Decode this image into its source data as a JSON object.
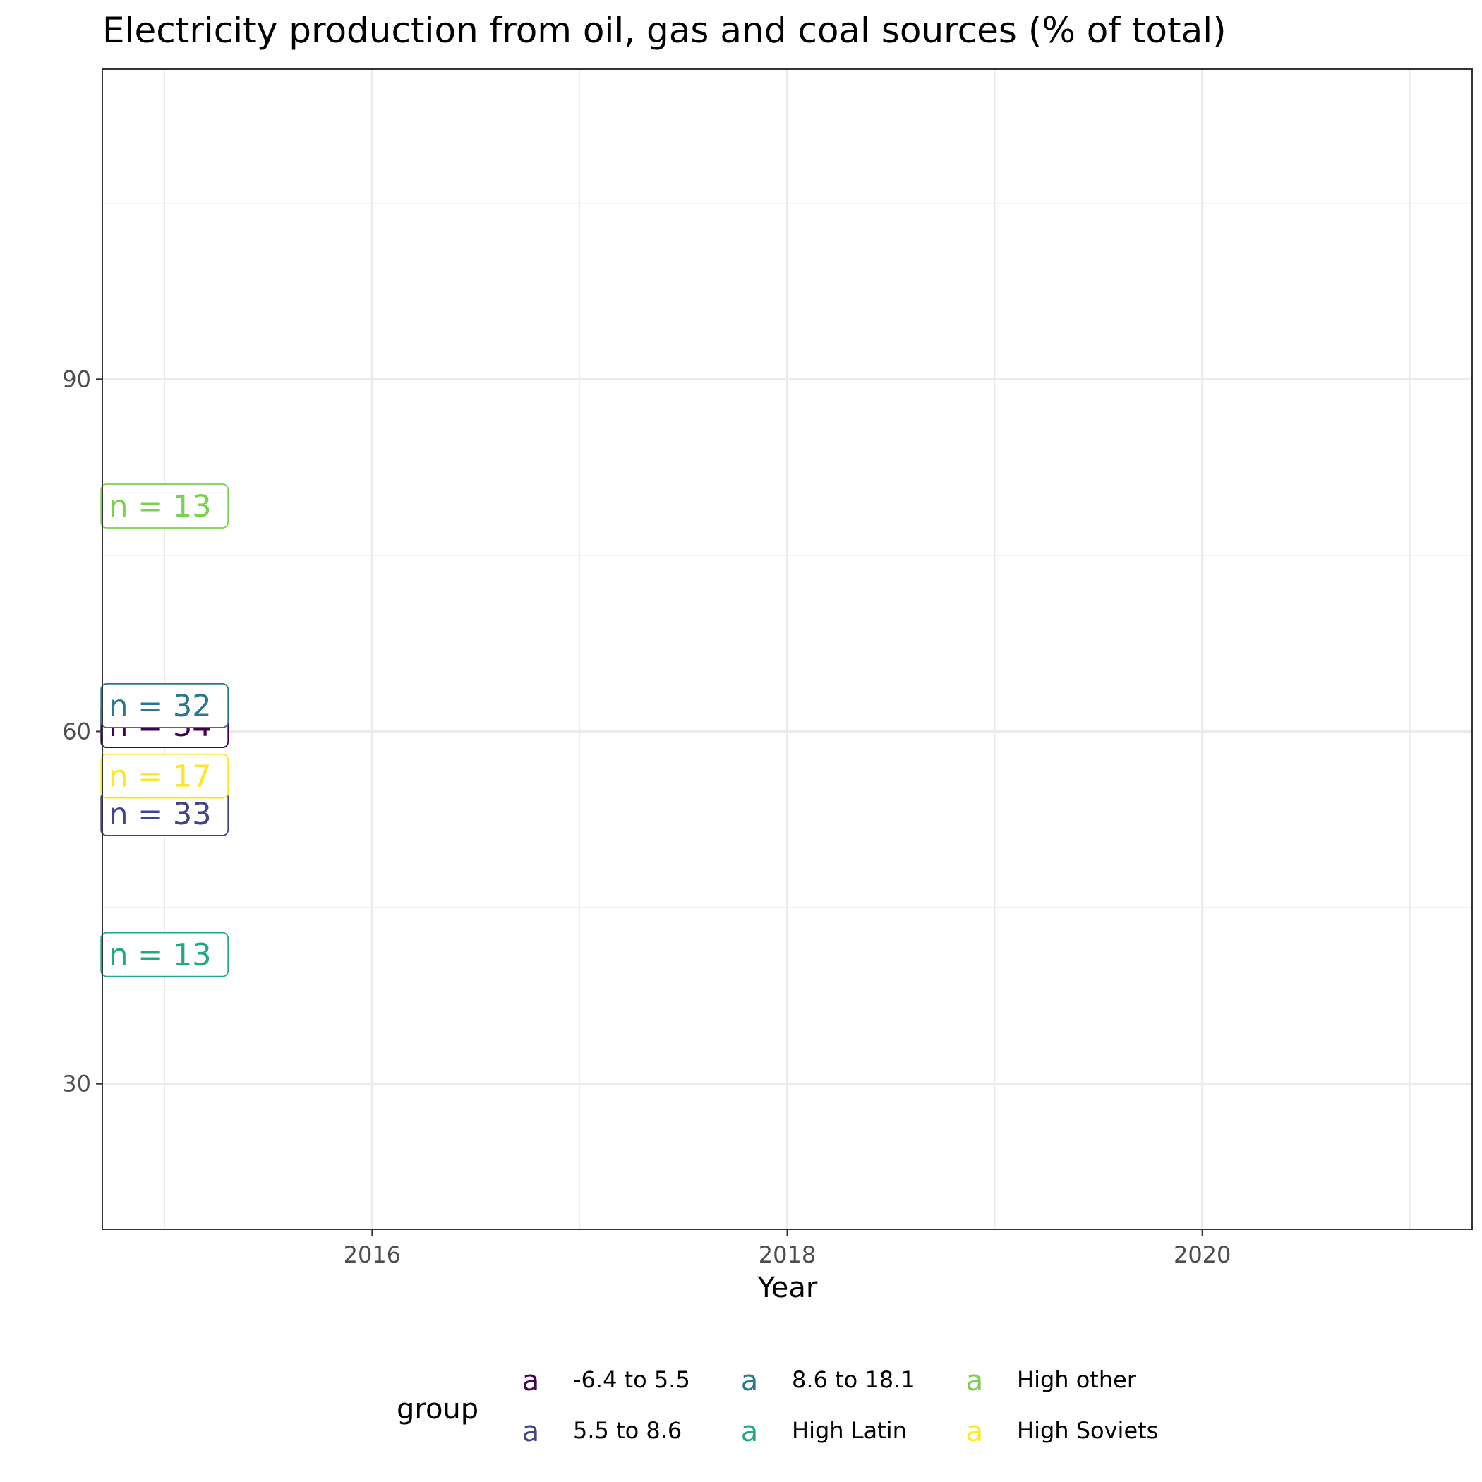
{
  "chart_data": {
    "type": "line",
    "title": "Electricity production from oil, gas and coal sources (% of total)",
    "xlabel": "Year",
    "ylabel": "",
    "xlim": [
      2014.7,
      2021.3
    ],
    "ylim": [
      17.6,
      116.4
    ],
    "x_ticks": [
      2016,
      2018,
      2020
    ],
    "x_tick_labels": [
      "2016",
      "2018",
      "2020"
    ],
    "y_ticks": [
      30,
      60,
      90
    ],
    "y_tick_labels": [
      "30",
      "60",
      "90"
    ],
    "grid": true,
    "legend": {
      "title": "group",
      "position": "bottom",
      "key_glyph": "a"
    },
    "series": [
      {
        "name": "-6.4 to 5.5",
        "color": "#440154",
        "label": "n = 34",
        "label_x": 2015,
        "label_y": 60.5
      },
      {
        "name": "5.5 to 8.6",
        "color": "#414487",
        "label": "n = 33",
        "label_x": 2015,
        "label_y": 53.0
      },
      {
        "name": "8.6 to 18.1",
        "color": "#2A788E",
        "label": "n = 32",
        "label_x": 2015,
        "label_y": 62.2
      },
      {
        "name": "High Latin",
        "color": "#22A884",
        "label": "n = 13",
        "label_x": 2015,
        "label_y": 41.0
      },
      {
        "name": "High other",
        "color": "#7AD151",
        "label": "n = 13",
        "label_x": 2015,
        "label_y": 79.2
      },
      {
        "name": "High Soviets",
        "color": "#FDE725",
        "label": "n = 17",
        "label_x": 2015,
        "label_y": 56.2
      }
    ]
  }
}
